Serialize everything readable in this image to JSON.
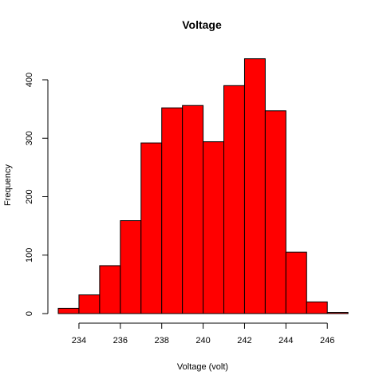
{
  "chart_data": {
    "type": "bar",
    "subtype": "histogram",
    "title": "Voltage",
    "xlabel": "Voltage (volt)",
    "ylabel": "Frequency",
    "bin_edges": [
      233,
      234,
      235,
      236,
      237,
      238,
      239,
      240,
      241,
      242,
      243,
      244,
      245,
      246,
      247
    ],
    "values": [
      9,
      32,
      82,
      159,
      292,
      352,
      356,
      294,
      390,
      436,
      347,
      105,
      20,
      2
    ],
    "x_ticks": [
      234,
      236,
      238,
      240,
      242,
      244,
      246
    ],
    "y_ticks": [
      0,
      100,
      200,
      300,
      400
    ],
    "xlim": [
      233,
      247
    ],
    "ylim": [
      0,
      440
    ],
    "grid": false,
    "legend": "none",
    "bar_color": "#ff0000",
    "edge_color": "#000000"
  }
}
